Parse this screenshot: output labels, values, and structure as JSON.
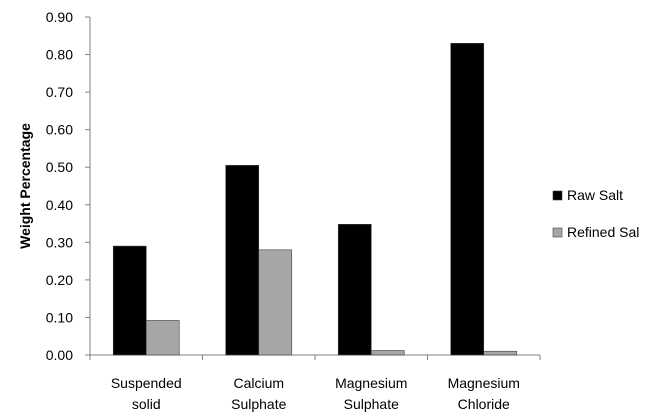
{
  "chart_data": {
    "type": "bar",
    "categories": [
      "Suspended solid",
      "Calcium Sulphate",
      "Magnesium Sulphate",
      "Magnesium Chloride"
    ],
    "category_lines": [
      [
        "Suspended",
        "solid"
      ],
      [
        "Calcium",
        "Sulphate"
      ],
      [
        "Magnesium",
        "Sulphate"
      ],
      [
        "Magnesium",
        "Chloride"
      ]
    ],
    "series": [
      {
        "name": "Raw Salt",
        "values": [
          0.29,
          0.505,
          0.348,
          0.83
        ],
        "color": "#000000"
      },
      {
        "name": "Refined Sal",
        "values": [
          0.092,
          0.28,
          0.012,
          0.01
        ],
        "color": "#a6a6a6"
      }
    ],
    "title": "",
    "xlabel": "",
    "ylabel": "Weight Percentage",
    "ylim": [
      0,
      0.9
    ],
    "yticks": [
      "0.00",
      "0.10",
      "0.20",
      "0.30",
      "0.40",
      "0.50",
      "0.60",
      "0.70",
      "0.80",
      "0.90"
    ],
    "grid": false,
    "legend": "right"
  }
}
